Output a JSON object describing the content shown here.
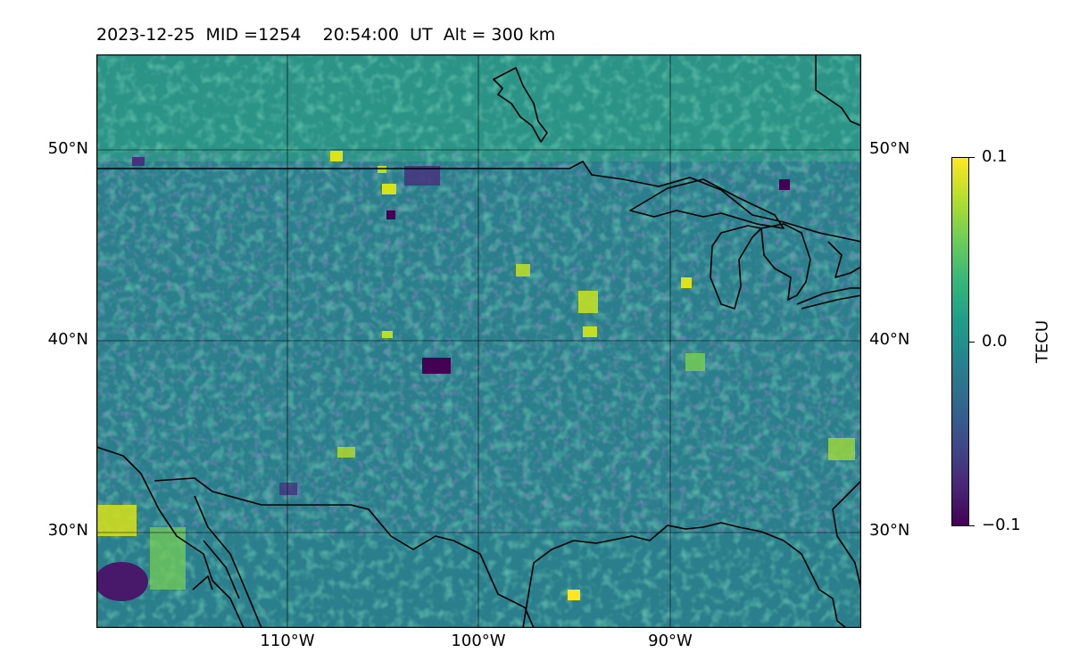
{
  "title": {
    "date": "2023-12-25",
    "mid": "MID =1254",
    "time": "20:54:00",
    "ut": "UT",
    "alt": "Alt = 300 km"
  },
  "map": {
    "lat_ticks": [
      "50°N",
      "40°N",
      "30°N"
    ],
    "lon_ticks": [
      "110°W",
      "100°W",
      "90°W"
    ],
    "lon_range": [
      -120,
      -80
    ],
    "lat_range": [
      25,
      55
    ]
  },
  "colorbar": {
    "title": "TECU",
    "ticks": [
      "0.1",
      "0.0",
      "−0.1"
    ],
    "range": [
      -0.1,
      0.1
    ],
    "colormap": "viridis"
  }
}
